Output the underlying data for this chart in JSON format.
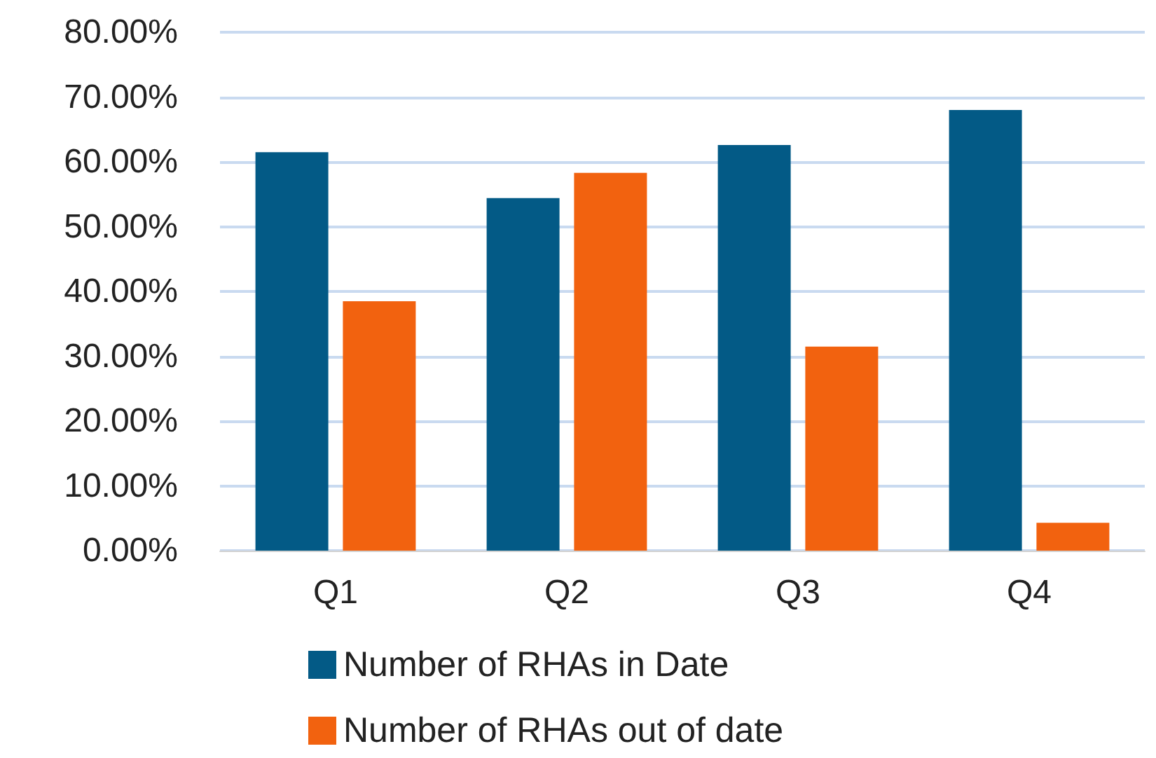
{
  "chart_data": {
    "type": "bar",
    "categories": [
      "Q1",
      "Q2",
      "Q3",
      "Q4"
    ],
    "series": [
      {
        "name": "Number of RHAs in Date",
        "color": "#035a86",
        "values": [
          61.5,
          54.4,
          62.6,
          68.0
        ]
      },
      {
        "name": "Number of RHAs out of date",
        "color": "#f2620f",
        "values": [
          38.5,
          58.3,
          31.5,
          4.3
        ]
      }
    ],
    "ylim": [
      0,
      80
    ],
    "yticks": [
      {
        "value": 0,
        "label": "0.00%"
      },
      {
        "value": 10,
        "label": "10.00%"
      },
      {
        "value": 20,
        "label": "20.00%"
      },
      {
        "value": 30,
        "label": "30.00%"
      },
      {
        "value": 40,
        "label": "40.00%"
      },
      {
        "value": 50,
        "label": "50.00%"
      },
      {
        "value": 60,
        "label": "60.00%"
      },
      {
        "value": 70,
        "label": "70.00%"
      },
      {
        "value": 80,
        "label": "80.00%"
      }
    ],
    "grid": "y",
    "legend": "bottom"
  }
}
